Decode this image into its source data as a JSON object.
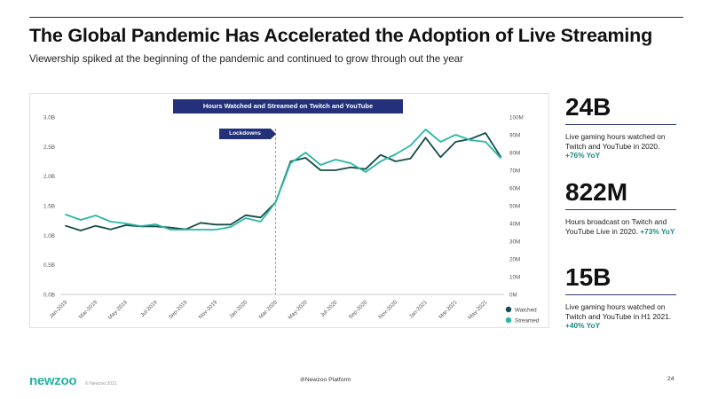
{
  "title": "The Global Pandemic Has Accelerated the Adoption of Live Streaming",
  "subtitle": "Viewership spiked at the beginning of the pandemic and continued to grow through out the year",
  "chart_data": {
    "type": "line",
    "title": "Hours Watched and Streamed on Twitch and YouTube",
    "annotation": "Lockdowns",
    "annotation_x": "Mar-2020",
    "x_labels": [
      "Jan-2019",
      "Mar-2019",
      "May-2019",
      "Jul-2019",
      "Sep-2019",
      "Nov-2019",
      "Jan-2020",
      "Mar-2020",
      "May-2020",
      "Jul-2020",
      "Sep-2020",
      "Nov-2020",
      "Jan-2021",
      "Mar-2021",
      "May-2021"
    ],
    "left_axis": {
      "ticks": [
        "0.0B",
        "0.5B",
        "1.0B",
        "1.5B",
        "2.0B",
        "2.5B",
        "3.0B"
      ],
      "ylim": [
        0,
        3.0
      ]
    },
    "right_axis": {
      "ticks": [
        "0M",
        "10M",
        "20M",
        "30M",
        "40M",
        "50M",
        "60M",
        "70M",
        "80M",
        "90M",
        "100M"
      ],
      "ylim": [
        0,
        100
      ]
    },
    "series": [
      {
        "name": "Watched",
        "axis": "left",
        "color": "#134e4a",
        "values": [
          1.16,
          1.08,
          1.16,
          1.1,
          1.17,
          1.15,
          1.15,
          1.13,
          1.1,
          1.21,
          1.18,
          1.18,
          1.34,
          1.3,
          1.56,
          2.25,
          2.31,
          2.1,
          2.1,
          2.15,
          2.12,
          2.36,
          2.25,
          2.3,
          2.65,
          2.32,
          2.58,
          2.63,
          2.73,
          2.33
        ]
      },
      {
        "name": "Streamed",
        "axis": "right",
        "color": "#2ab7a6",
        "values": [
          45.0,
          42.0,
          44.5,
          41.0,
          40.0,
          38.5,
          39.5,
          36.5,
          36.5,
          36.5,
          36.5,
          38.0,
          43.0,
          41.0,
          52.0,
          74.0,
          80.0,
          73.0,
          76.0,
          74.0,
          69.0,
          75.0,
          79.0,
          84.0,
          93.0,
          86.0,
          90.0,
          87.0,
          86.0,
          77.0
        ]
      }
    ],
    "legend": [
      {
        "label": "Watched",
        "color": "#134e4a"
      },
      {
        "label": "Streamed",
        "color": "#2ab7a6"
      }
    ]
  },
  "stats": [
    {
      "big": "24B",
      "text": "Live gaming hours watched on Twitch and YouTube in 2020. ",
      "highlight": "+76% YoY"
    },
    {
      "big": "822M",
      "text": "Hours broadcast on Twitch and YouTube Live in 2020. ",
      "highlight": "+73% YoY"
    },
    {
      "big": "15B",
      "text": "Live gaming hours watched on Twitch and YouTube in H1 2021. ",
      "highlight": "+40% YoY"
    }
  ],
  "footer": {
    "logo": "newzoo",
    "copyright": "© Newzoo 2021",
    "center": "Newzoo Platform",
    "page": "24"
  }
}
